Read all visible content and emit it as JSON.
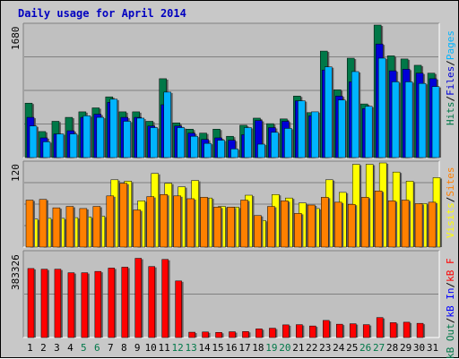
{
  "title": "Daily usage for April 2014",
  "colors": {
    "pages": "#00b4ff",
    "files": "#0000d8",
    "hits": "#007848",
    "visits": "#ffff00",
    "sites": "#ff8000",
    "kb_f": "#ff0000",
    "kb_in": "#0000ff",
    "kb_out": "#007848",
    "weekend_day": "#007848",
    "weekday": "#000000"
  },
  "legend_top": [
    {
      "text": "Hits",
      "color": "#007848"
    },
    {
      "text": "/",
      "color": "#000000"
    },
    {
      "text": "Files",
      "color": "#0000d8"
    },
    {
      "text": "/",
      "color": "#000000"
    },
    {
      "text": "Pages",
      "color": "#00b4ff"
    }
  ],
  "legend_mid": [
    {
      "text": "Visits",
      "color": "#ffff00"
    },
    {
      "text": "/",
      "color": "#000000"
    },
    {
      "text": "Sites",
      "color": "#ff8000"
    }
  ],
  "legend_bot": [
    {
      "text": "kB Out",
      "color": "#007848"
    },
    {
      "text": "/",
      "color": "#000000"
    },
    {
      "text": "kB In",
      "color": "#0000ff"
    },
    {
      "text": "/",
      "color": "#000000"
    },
    {
      "text": "kB F",
      "color": "#ff0000"
    }
  ],
  "ymax_labels": {
    "top": "1680",
    "mid": "120",
    "bot": "383326"
  },
  "chart_data": {
    "type": "bar",
    "days": [
      "1",
      "2",
      "3",
      "4",
      "5",
      "6",
      "7",
      "8",
      "9",
      "10",
      "11",
      "12",
      "13",
      "14",
      "15",
      "16",
      "17",
      "18",
      "19",
      "20",
      "21",
      "22",
      "23",
      "24",
      "25",
      "26",
      "27",
      "28",
      "29",
      "30",
      "31"
    ],
    "weekend_days": [
      "5",
      "6",
      "12",
      "13",
      "19",
      "20",
      "26",
      "27"
    ],
    "hits": [
      690,
      330,
      460,
      510,
      580,
      630,
      770,
      580,
      580,
      460,
      1000,
      440,
      360,
      310,
      360,
      270,
      410,
      500,
      430,
      490,
      780,
      570,
      1350,
      860,
      1260,
      680,
      1680,
      1290,
      1250,
      1170,
      1070
    ],
    "files": [
      510,
      250,
      300,
      340,
      510,
      550,
      700,
      510,
      510,
      400,
      670,
      400,
      310,
      230,
      250,
      220,
      290,
      470,
      380,
      460,
      720,
      530,
      1110,
      780,
      960,
      620,
      1440,
      1100,
      1120,
      1070,
      1000
    ],
    "pages": [
      400,
      200,
      300,
      300,
      530,
      510,
      740,
      460,
      500,
      380,
      830,
      380,
      270,
      180,
      220,
      110,
      380,
      170,
      320,
      370,
      720,
      580,
      1150,
      730,
      1090,
      650,
      1260,
      960,
      960,
      940,
      900
    ],
    "visits": [
      40,
      41,
      41,
      42,
      43,
      44,
      96,
      94,
      66,
      105,
      91,
      86,
      95,
      70,
      58,
      57,
      74,
      38,
      75,
      70,
      63,
      55,
      96,
      78,
      118,
      118,
      120,
      107,
      94,
      62,
      99
    ],
    "sites": [
      67,
      68,
      56,
      58,
      55,
      58,
      73,
      91,
      53,
      72,
      75,
      73,
      69,
      71,
      57,
      57,
      67,
      45,
      58,
      66,
      48,
      60,
      71,
      64,
      61,
      71,
      80,
      66,
      67,
      62,
      64
    ],
    "kb_f": [
      311000,
      308000,
      308000,
      292000,
      292000,
      298000,
      313000,
      317000,
      357000,
      320000,
      352000,
      255000,
      24000,
      25000,
      23000,
      26000,
      27000,
      39000,
      42000,
      57000,
      58000,
      52000,
      77000,
      60000,
      62000,
      58000,
      90000,
      67000,
      69000,
      64000,
      0
    ],
    "kb_in": [],
    "kb_out": [],
    "ylim_top": [
      0,
      1680
    ],
    "ylim_mid": [
      0,
      120
    ],
    "ylim_bot": [
      0,
      383326
    ]
  }
}
